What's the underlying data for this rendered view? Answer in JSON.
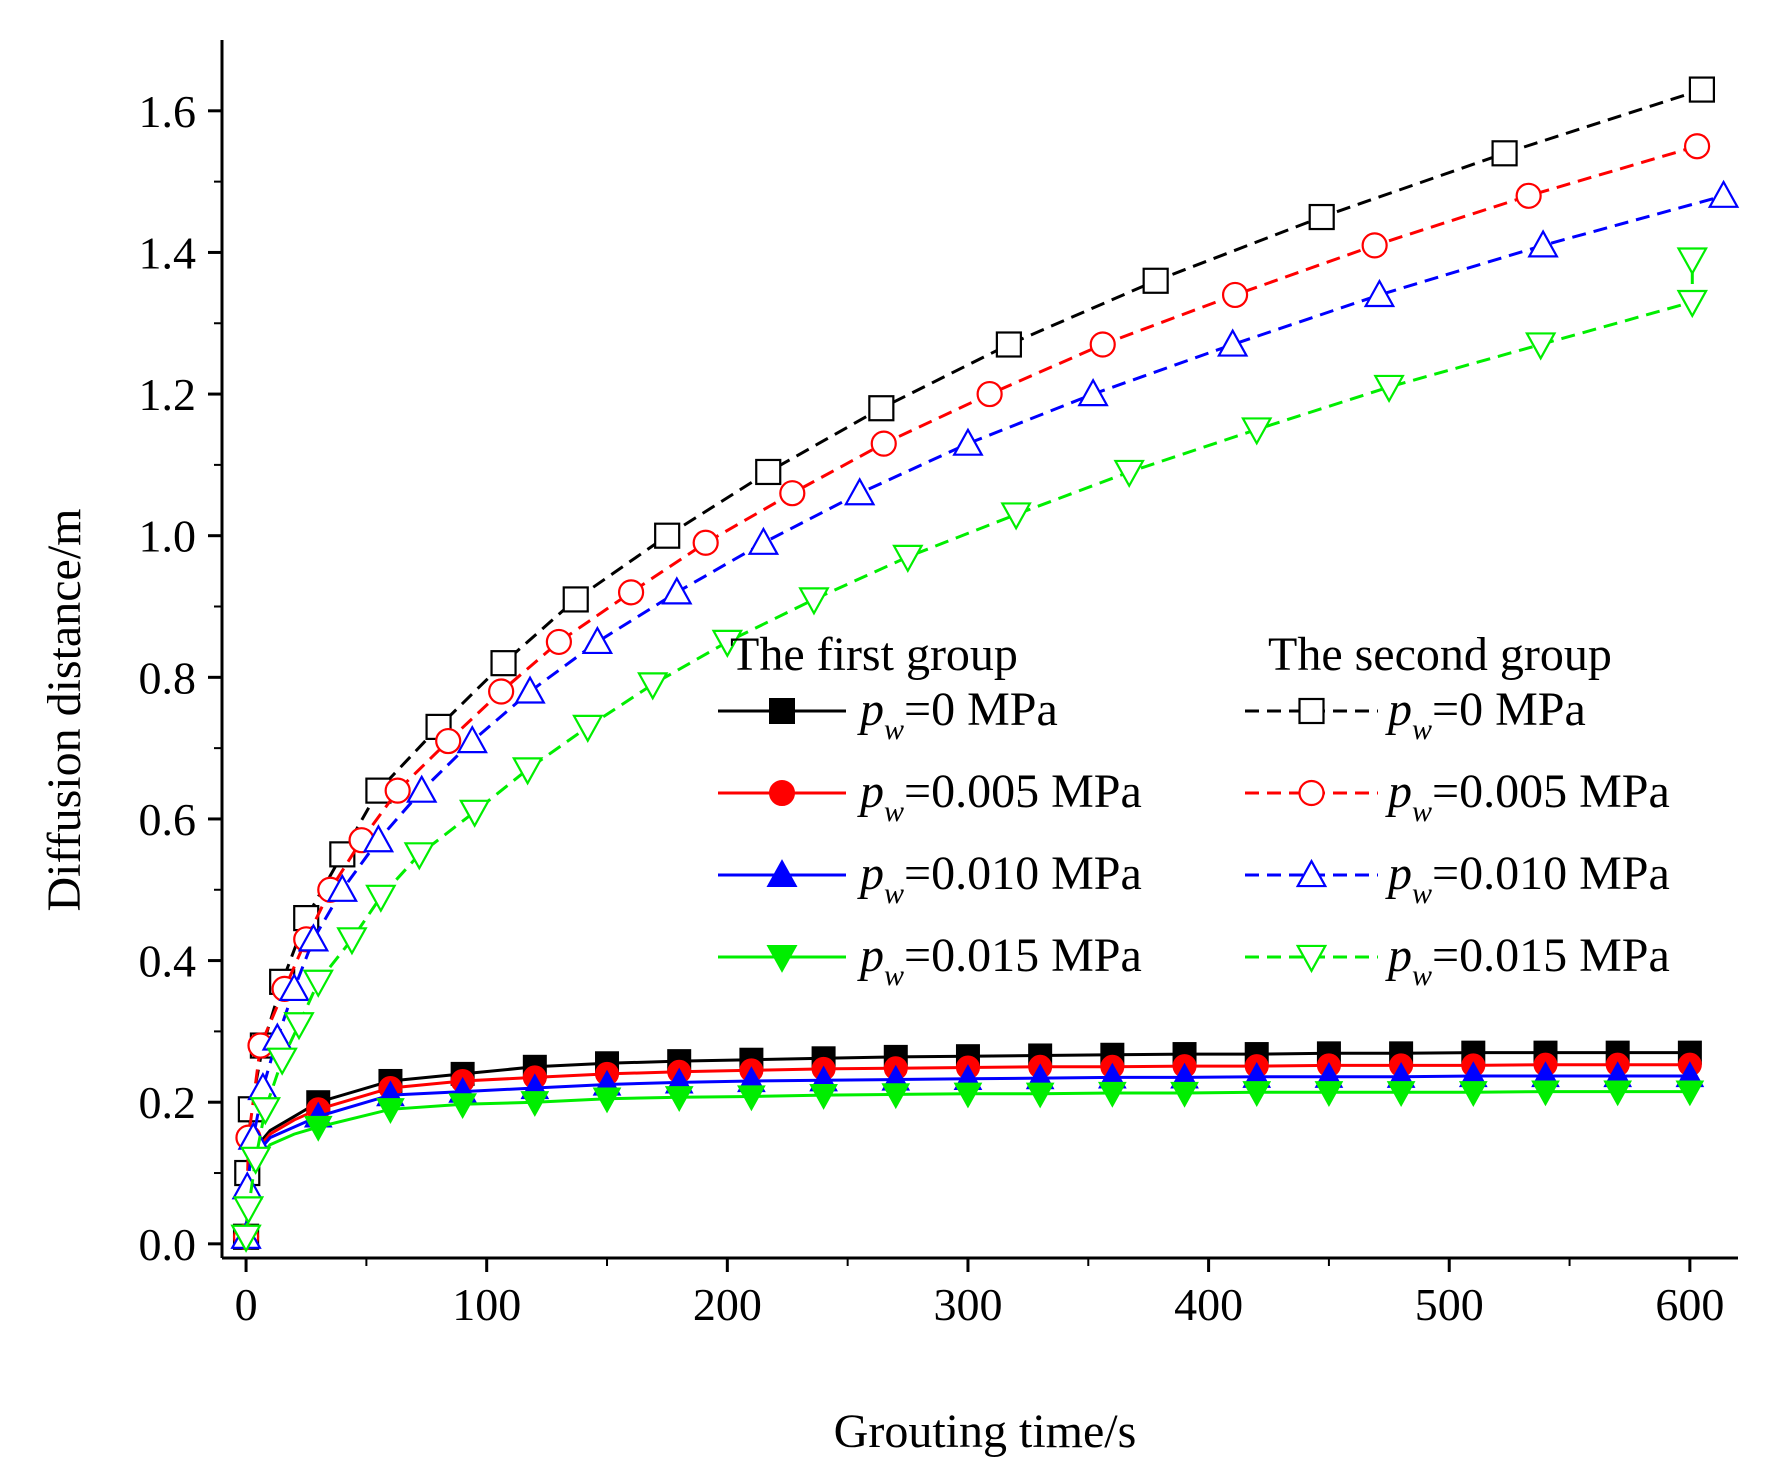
{
  "chart_data": {
    "type": "line",
    "title": "",
    "xlabel": "Grouting time/s",
    "ylabel": "Diffusion distance/m",
    "xlim": [
      -10,
      620
    ],
    "ylim": [
      -0.02,
      1.7
    ],
    "xticks": [
      0,
      100,
      200,
      300,
      400,
      500,
      600
    ],
    "yticks": [
      0.0,
      0.2,
      0.4,
      0.6,
      0.8,
      1.0,
      1.2,
      1.4,
      1.6
    ],
    "xtick_labels": [
      "0",
      "100",
      "200",
      "300",
      "400",
      "500",
      "600"
    ],
    "ytick_labels": [
      "0.0",
      "0.2",
      "0.4",
      "0.6",
      "0.8",
      "1.0",
      "1.2",
      "1.4",
      "1.6"
    ],
    "legend": {
      "placement": "center-right",
      "groups": [
        {
          "heading": "The first group",
          "entries": [
            {
              "var": "p",
              "sub": "w",
              "text": "=0 MPa"
            },
            {
              "var": "p",
              "sub": "w",
              "text": "=0.005 MPa"
            },
            {
              "var": "p",
              "sub": "w",
              "text": "=0.010 MPa"
            },
            {
              "var": "p",
              "sub": "w",
              "text": "=0.015 MPa"
            }
          ]
        },
        {
          "heading": "The second group",
          "entries": [
            {
              "var": "p",
              "sub": "w",
              "text": "=0 MPa"
            },
            {
              "var": "p",
              "sub": "w",
              "text": "=0.005 MPa"
            },
            {
              "var": "p",
              "sub": "w",
              "text": "=0.010 MPa"
            },
            {
              "var": "p",
              "sub": "w",
              "text": "=0.015 MPa"
            }
          ]
        }
      ]
    },
    "series": [
      {
        "name": "The first group p_w=0 MPa",
        "color": "#000000",
        "marker": "square",
        "filled": true,
        "dashed": false,
        "points": [
          [
            0,
            0.01
          ],
          [
            1,
            0.08
          ],
          [
            3,
            0.12
          ],
          [
            5,
            0.14
          ],
          [
            10,
            0.16
          ],
          [
            20,
            0.18
          ],
          [
            30,
            0.2
          ],
          [
            60,
            0.23
          ],
          [
            90,
            0.24
          ],
          [
            120,
            0.25
          ],
          [
            150,
            0.255
          ],
          [
            180,
            0.258
          ],
          [
            210,
            0.26
          ],
          [
            240,
            0.262
          ],
          [
            270,
            0.264
          ],
          [
            300,
            0.265
          ],
          [
            330,
            0.266
          ],
          [
            360,
            0.267
          ],
          [
            390,
            0.268
          ],
          [
            420,
            0.268
          ],
          [
            450,
            0.269
          ],
          [
            480,
            0.269
          ],
          [
            510,
            0.27
          ],
          [
            540,
            0.27
          ],
          [
            570,
            0.27
          ],
          [
            600,
            0.27
          ]
        ]
      },
      {
        "name": "The first group p_w=0.005 MPa",
        "color": "#ff0000",
        "marker": "circle",
        "filled": true,
        "dashed": false,
        "points": [
          [
            0,
            0.01
          ],
          [
            1,
            0.08
          ],
          [
            3,
            0.115
          ],
          [
            5,
            0.135
          ],
          [
            10,
            0.155
          ],
          [
            20,
            0.175
          ],
          [
            30,
            0.19
          ],
          [
            60,
            0.22
          ],
          [
            90,
            0.23
          ],
          [
            120,
            0.235
          ],
          [
            150,
            0.24
          ],
          [
            180,
            0.243
          ],
          [
            210,
            0.245
          ],
          [
            240,
            0.247
          ],
          [
            270,
            0.248
          ],
          [
            300,
            0.249
          ],
          [
            330,
            0.25
          ],
          [
            360,
            0.25
          ],
          [
            390,
            0.251
          ],
          [
            420,
            0.251
          ],
          [
            450,
            0.252
          ],
          [
            480,
            0.252
          ],
          [
            510,
            0.252
          ],
          [
            540,
            0.253
          ],
          [
            570,
            0.253
          ],
          [
            600,
            0.253
          ]
        ]
      },
      {
        "name": "The first group p_w=0.010 MPa",
        "color": "#0000ff",
        "marker": "triangle-up",
        "filled": true,
        "dashed": false,
        "points": [
          [
            0,
            0.01
          ],
          [
            1,
            0.075
          ],
          [
            3,
            0.11
          ],
          [
            5,
            0.13
          ],
          [
            10,
            0.15
          ],
          [
            20,
            0.165
          ],
          [
            30,
            0.18
          ],
          [
            60,
            0.21
          ],
          [
            90,
            0.215
          ],
          [
            120,
            0.22
          ],
          [
            150,
            0.225
          ],
          [
            180,
            0.228
          ],
          [
            210,
            0.23
          ],
          [
            240,
            0.231
          ],
          [
            270,
            0.232
          ],
          [
            300,
            0.233
          ],
          [
            330,
            0.234
          ],
          [
            360,
            0.235
          ],
          [
            390,
            0.235
          ],
          [
            420,
            0.236
          ],
          [
            450,
            0.236
          ],
          [
            480,
            0.236
          ],
          [
            510,
            0.237
          ],
          [
            540,
            0.237
          ],
          [
            570,
            0.237
          ],
          [
            600,
            0.237
          ]
        ]
      },
      {
        "name": "The first group p_w=0.015 MPa",
        "color": "#00ee00",
        "marker": "triangle-down",
        "filled": true,
        "dashed": false,
        "points": [
          [
            0,
            0.01
          ],
          [
            1,
            0.07
          ],
          [
            3,
            0.105
          ],
          [
            5,
            0.12
          ],
          [
            10,
            0.14
          ],
          [
            20,
            0.155
          ],
          [
            30,
            0.165
          ],
          [
            60,
            0.19
          ],
          [
            90,
            0.197
          ],
          [
            120,
            0.2
          ],
          [
            150,
            0.205
          ],
          [
            180,
            0.207
          ],
          [
            210,
            0.208
          ],
          [
            240,
            0.21
          ],
          [
            270,
            0.211
          ],
          [
            300,
            0.212
          ],
          [
            330,
            0.212
          ],
          [
            360,
            0.213
          ],
          [
            390,
            0.213
          ],
          [
            420,
            0.214
          ],
          [
            450,
            0.214
          ],
          [
            480,
            0.214
          ],
          [
            510,
            0.214
          ],
          [
            540,
            0.215
          ],
          [
            570,
            0.215
          ],
          [
            600,
            0.215
          ]
        ]
      },
      {
        "name": "The second group p_w=0 MPa",
        "color": "#000000",
        "marker": "square",
        "filled": false,
        "dashed": true,
        "points": [
          [
            0,
            0.01
          ],
          [
            0.5,
            0.1
          ],
          [
            2,
            0.19
          ],
          [
            7,
            0.28
          ],
          [
            15,
            0.37
          ],
          [
            25,
            0.46
          ],
          [
            40,
            0.55
          ],
          [
            55,
            0.64
          ],
          [
            80,
            0.73
          ],
          [
            107,
            0.82
          ],
          [
            137,
            0.91
          ],
          [
            175,
            1.0
          ],
          [
            217,
            1.09
          ],
          [
            264,
            1.18
          ],
          [
            317,
            1.27
          ],
          [
            378,
            1.36
          ],
          [
            447,
            1.45
          ],
          [
            523,
            1.54
          ],
          [
            605,
            1.63
          ]
        ]
      },
      {
        "name": "The second group p_w=0.005 MPa",
        "color": "#ff0000",
        "marker": "circle",
        "filled": false,
        "dashed": true,
        "points": [
          [
            0,
            0.01
          ],
          [
            1,
            0.15
          ],
          [
            6,
            0.28
          ],
          [
            16,
            0.36
          ],
          [
            25,
            0.43
          ],
          [
            35,
            0.5
          ],
          [
            48,
            0.57
          ],
          [
            63,
            0.64
          ],
          [
            84,
            0.71
          ],
          [
            106,
            0.78
          ],
          [
            130,
            0.85
          ],
          [
            160,
            0.92
          ],
          [
            191,
            0.99
          ],
          [
            227,
            1.06
          ],
          [
            265,
            1.13
          ],
          [
            309,
            1.2
          ],
          [
            356,
            1.27
          ],
          [
            411,
            1.34
          ],
          [
            469,
            1.41
          ],
          [
            533,
            1.48
          ],
          [
            603,
            1.55
          ]
        ]
      },
      {
        "name": "The second group p_w=0.010 MPa",
        "color": "#0000ff",
        "marker": "triangle-up",
        "filled": false,
        "dashed": true,
        "points": [
          [
            0,
            0.01
          ],
          [
            0.5,
            0.08
          ],
          [
            3,
            0.15
          ],
          [
            7,
            0.22
          ],
          [
            13,
            0.29
          ],
          [
            20,
            0.36
          ],
          [
            28,
            0.43
          ],
          [
            40,
            0.5
          ],
          [
            55,
            0.57
          ],
          [
            73,
            0.64
          ],
          [
            94,
            0.71
          ],
          [
            118,
            0.78
          ],
          [
            146,
            0.85
          ],
          [
            179,
            0.92
          ],
          [
            215,
            0.99
          ],
          [
            255,
            1.06
          ],
          [
            300,
            1.13
          ],
          [
            352,
            1.2
          ],
          [
            410,
            1.27
          ],
          [
            471,
            1.34
          ],
          [
            539,
            1.41
          ],
          [
            614,
            1.48
          ]
        ]
      },
      {
        "name": "The second group p_w=0.015 MPa",
        "color": "#00ee00",
        "marker": "triangle-down",
        "filled": false,
        "dashed": true,
        "points": [
          [
            0,
            0.01
          ],
          [
            1,
            0.05
          ],
          [
            4,
            0.12
          ],
          [
            8,
            0.19
          ],
          [
            15,
            0.26
          ],
          [
            22,
            0.31
          ],
          [
            30,
            0.37
          ],
          [
            44,
            0.43
          ],
          [
            56,
            0.49
          ],
          [
            72,
            0.55
          ],
          [
            95,
            0.61
          ],
          [
            117,
            0.67
          ],
          [
            142,
            0.73
          ],
          [
            169,
            0.79
          ],
          [
            200,
            0.85
          ],
          [
            236,
            0.91
          ],
          [
            275,
            0.97
          ],
          [
            320,
            1.03
          ],
          [
            367,
            1.09
          ],
          [
            420,
            1.15
          ],
          [
            475,
            1.21
          ],
          [
            538,
            1.27
          ],
          [
            601,
            1.33
          ],
          [
            601,
            1.39
          ]
        ]
      }
    ]
  }
}
